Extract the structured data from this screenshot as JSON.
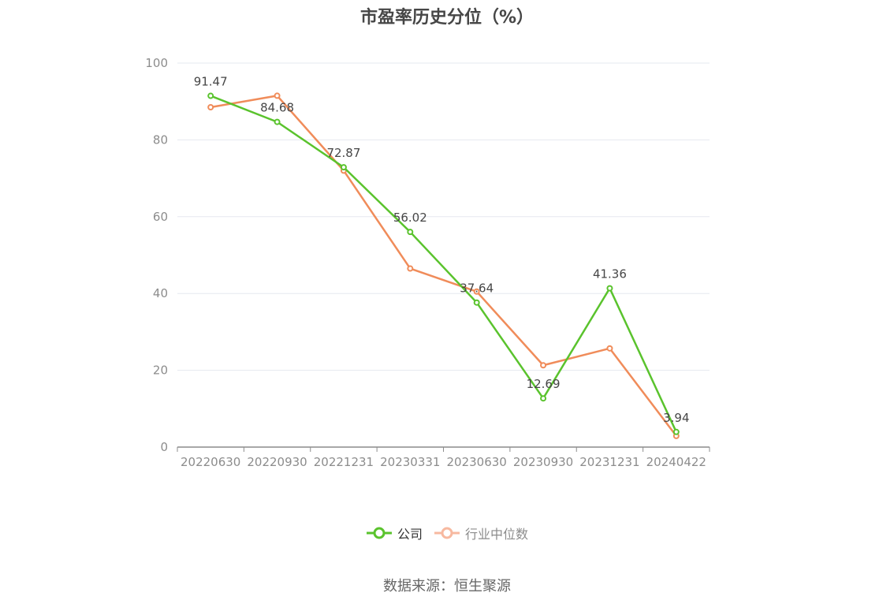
{
  "title": "市盈率历史分位（%）",
  "source": "数据来源：恒生聚源",
  "chart_data": {
    "type": "line",
    "title": "市盈率历史分位（%）",
    "categories": [
      "20220630",
      "20220930",
      "20221231",
      "20230331",
      "20230630",
      "20230930",
      "20231231",
      "20240422"
    ],
    "ylim": [
      0,
      100
    ],
    "yticks": [
      0,
      20,
      40,
      60,
      80,
      100
    ],
    "grid": true,
    "legend_position": "bottom",
    "series": [
      {
        "name": "公司",
        "color": "#5ac32d",
        "values": [
          91.47,
          84.68,
          72.87,
          56.02,
          37.64,
          12.69,
          41.36,
          3.94
        ],
        "labels": [
          "91.47",
          "84.68",
          "72.87",
          "56.02",
          "37.64",
          "12.69",
          "41.36",
          "3.94"
        ],
        "show_labels": true
      },
      {
        "name": "行业中位数",
        "color": "#f08c5a",
        "legend_color": "#f7b9a0",
        "values": [
          88.5,
          91.5,
          72.0,
          46.5,
          40.5,
          21.3,
          25.7,
          2.9
        ],
        "show_labels": false
      }
    ]
  }
}
